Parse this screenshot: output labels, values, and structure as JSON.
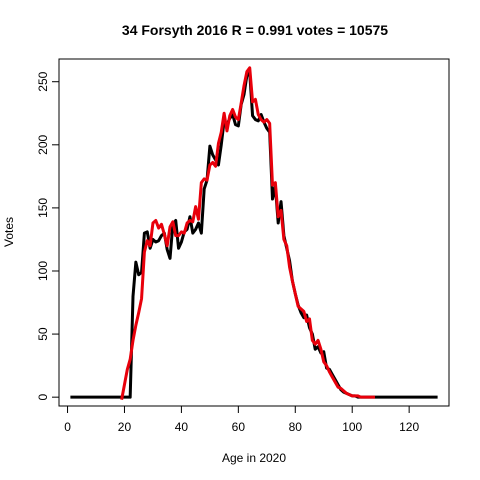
{
  "chart_data": {
    "type": "line",
    "title": "34 Forsyth 2016 R = 0.991 votes = 10575",
    "xlabel": "Age in 2020",
    "ylabel": "Votes",
    "xlim": [
      -3,
      134
    ],
    "ylim": [
      -7,
      268
    ],
    "xticks": [
      0,
      20,
      40,
      60,
      80,
      100,
      120
    ],
    "yticks": [
      0,
      50,
      100,
      150,
      200,
      250
    ],
    "grid": false,
    "legend": "none",
    "series": [
      {
        "color": "#000000",
        "x": [
          1,
          22,
          23,
          24,
          25,
          26,
          27,
          28,
          29,
          30,
          31,
          32,
          33,
          34,
          35,
          36,
          37,
          38,
          39,
          40,
          41,
          42,
          43,
          44,
          45,
          46,
          47,
          48,
          49,
          50,
          51,
          52,
          53,
          54,
          55,
          56,
          57,
          58,
          59,
          60,
          61,
          62,
          63,
          64,
          65,
          66,
          67,
          68,
          69,
          70,
          71,
          72,
          73,
          74,
          75,
          76,
          77,
          78,
          79,
          80,
          81,
          82,
          83,
          84,
          85,
          86,
          87,
          88,
          89,
          90,
          91,
          92,
          93,
          94,
          95,
          96,
          97,
          98,
          99,
          100,
          101,
          102,
          103,
          104,
          105,
          106,
          107,
          108,
          110,
          130
        ],
        "y": [
          0,
          0,
          80,
          107,
          97,
          99,
          130,
          131,
          118,
          125,
          123,
          124,
          128,
          130,
          117,
          110,
          137,
          140,
          118,
          123,
          131,
          133,
          143,
          130,
          133,
          138,
          130,
          165,
          172,
          199,
          192,
          188,
          184,
          200,
          219,
          216,
          221,
          224,
          216,
          215,
          232,
          240,
          255,
          257,
          223,
          220,
          219,
          224,
          218,
          213,
          210,
          157,
          167,
          138,
          155,
          128,
          118,
          108,
          92,
          82,
          73,
          67,
          63,
          65,
          55,
          50,
          38,
          40,
          35,
          36,
          23,
          22,
          18,
          14,
          10,
          6,
          4,
          3,
          2,
          1,
          1,
          0,
          0,
          0,
          0,
          0,
          0,
          0,
          0,
          0
        ]
      },
      {
        "color": "#e8000b",
        "x": [
          19,
          20,
          21,
          22,
          23,
          24,
          25,
          26,
          27,
          28,
          29,
          30,
          31,
          32,
          33,
          34,
          35,
          36,
          37,
          38,
          39,
          40,
          41,
          42,
          43,
          44,
          45,
          46,
          47,
          48,
          49,
          50,
          51,
          52,
          53,
          54,
          55,
          56,
          57,
          58,
          59,
          60,
          61,
          62,
          63,
          64,
          65,
          66,
          67,
          68,
          69,
          70,
          71,
          72,
          73,
          74,
          75,
          76,
          77,
          78,
          79,
          80,
          81,
          82,
          83,
          84,
          85,
          86,
          87,
          88,
          89,
          90,
          91,
          92,
          93,
          94,
          95,
          96,
          97,
          98,
          99,
          100,
          101,
          102,
          103,
          104,
          105,
          106,
          107,
          108
        ],
        "y": [
          -2,
          10,
          22,
          30,
          45,
          57,
          67,
          78,
          115,
          124,
          120,
          138,
          140,
          134,
          137,
          129,
          120,
          135,
          139,
          128,
          128,
          131,
          130,
          138,
          140,
          139,
          151,
          141,
          170,
          173,
          172,
          184,
          186,
          183,
          201,
          210,
          225,
          211,
          223,
          228,
          222,
          220,
          233,
          247,
          258,
          261,
          234,
          236,
          224,
          220,
          218,
          220,
          217,
          168,
          170,
          143,
          148,
          125,
          120,
          103,
          92,
          82,
          72,
          70,
          68,
          60,
          62,
          45,
          42,
          45,
          38,
          28,
          25,
          20,
          16,
          12,
          8,
          7,
          5,
          3,
          2,
          1,
          1,
          1,
          0,
          0,
          0,
          0,
          0,
          0
        ]
      }
    ]
  }
}
